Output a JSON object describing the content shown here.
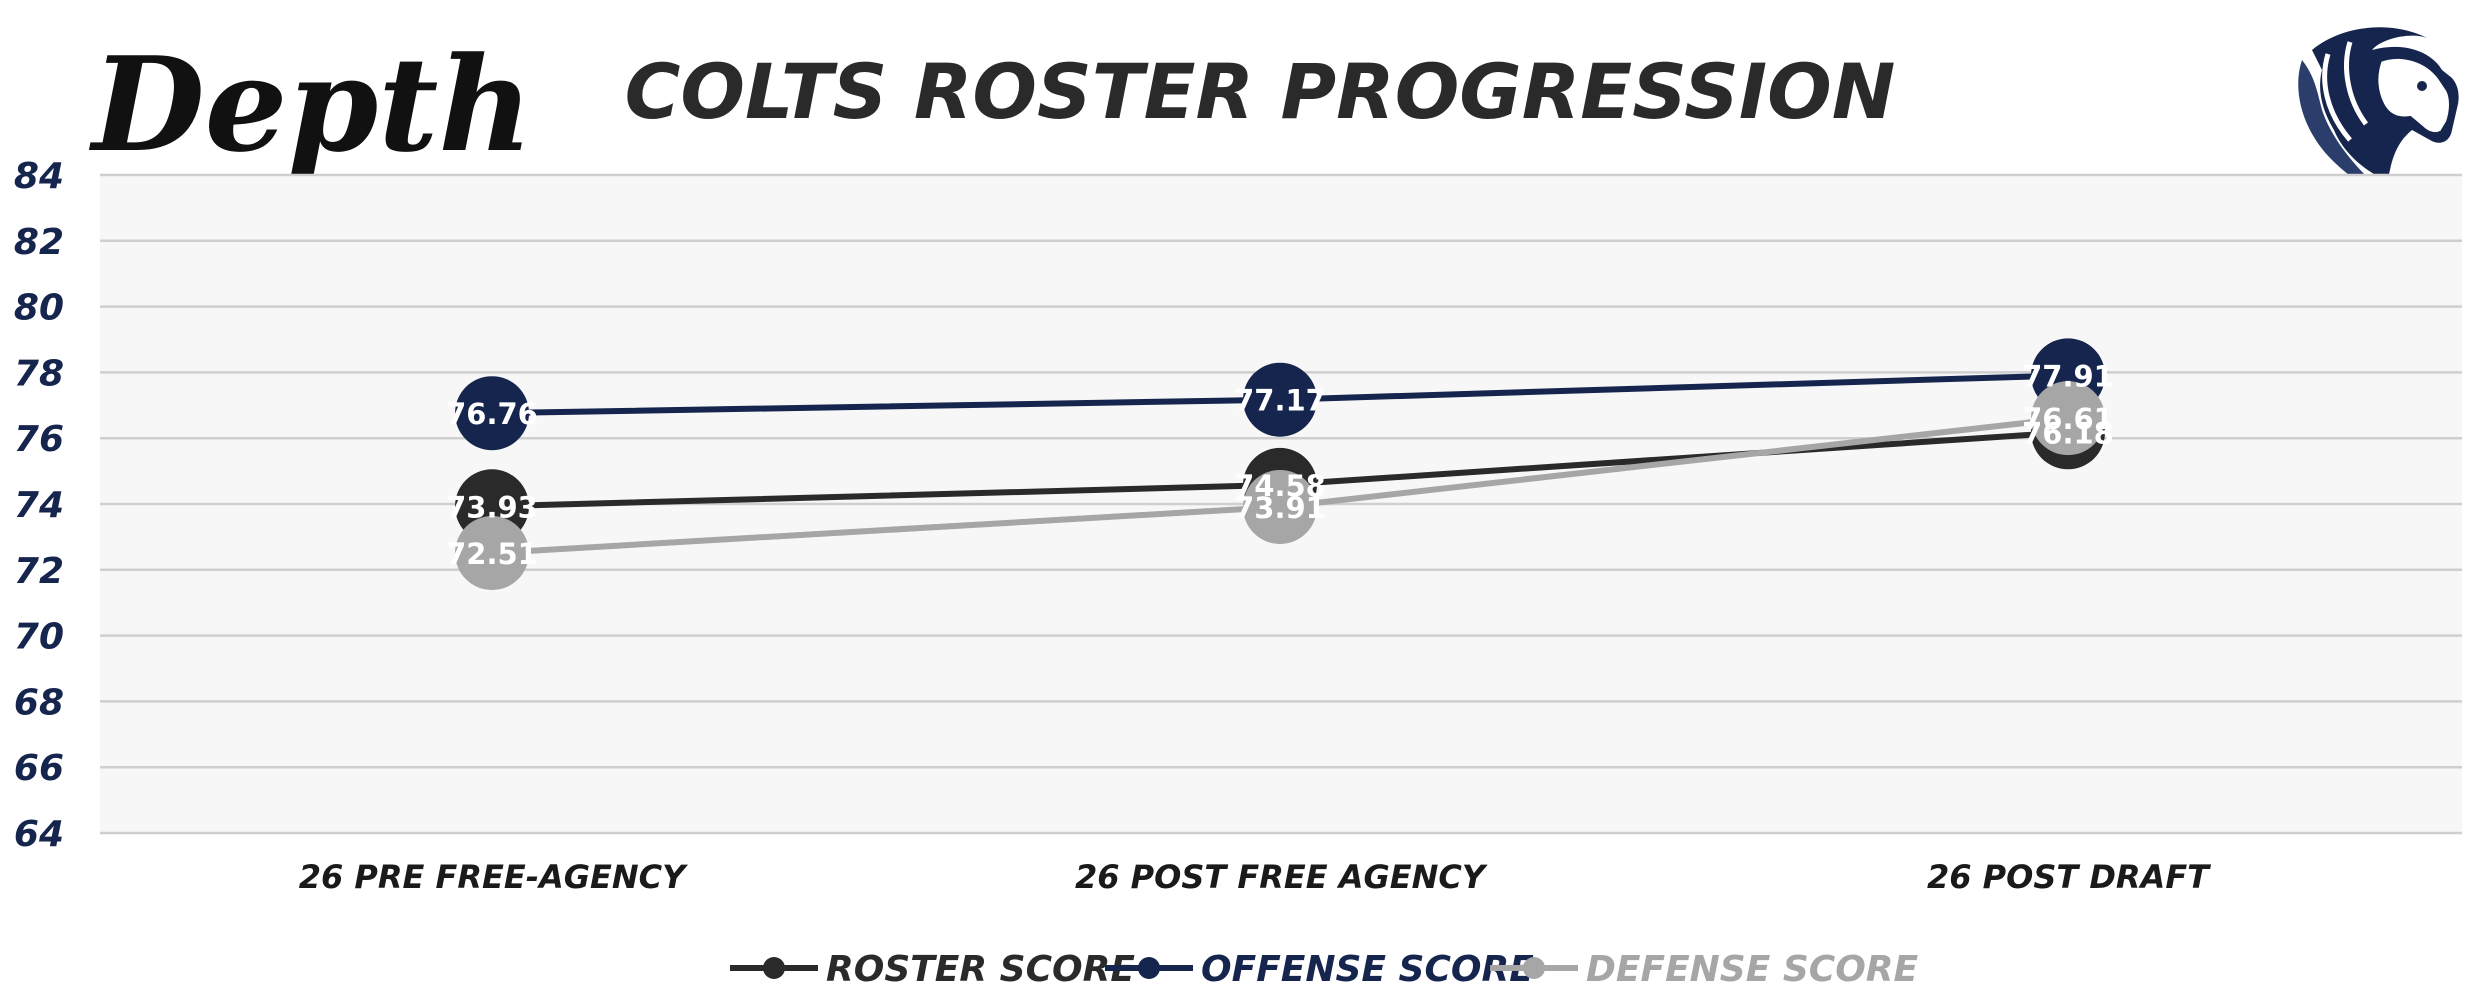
{
  "header": {
    "logo_text": "Depth",
    "team_logo": "horse-head-icon"
  },
  "colors": {
    "roster": "#2a2a2a",
    "offense": "#16254d",
    "defense": "#a6a6a6",
    "plot_bg": "#f7f7f7",
    "grid": "#cfcfcf",
    "ytick": "#16254d",
    "title": "#2a2a2a",
    "category": "#1a1a1a"
  },
  "chart_data": {
    "type": "line",
    "title": "COLTS ROSTER PROGRESSION",
    "xlabel": "",
    "ylabel": "",
    "categories": [
      "26 PRE FREE-AGENCY",
      "26 POST FREE AGENCY",
      "26 POST DRAFT"
    ],
    "ylim": [
      64,
      84
    ],
    "yticks": [
      84,
      82,
      80,
      78,
      76,
      74,
      72,
      70,
      68,
      66,
      64
    ],
    "grid": true,
    "legend_position": "bottom",
    "series": [
      {
        "name": "ROSTER SCORE",
        "values": [
          73.93,
          74.58,
          76.18
        ],
        "labels": [
          "73.93",
          "74.58",
          "76.18"
        ]
      },
      {
        "name": "OFFENSE SCORE",
        "values": [
          76.76,
          77.17,
          77.91
        ],
        "labels": [
          "76.76",
          "77.17",
          "77.91"
        ]
      },
      {
        "name": "DEFENSE SCORE",
        "values": [
          72.51,
          73.91,
          76.61
        ],
        "labels": [
          "72.51",
          "73.91",
          "76.61"
        ]
      }
    ]
  }
}
